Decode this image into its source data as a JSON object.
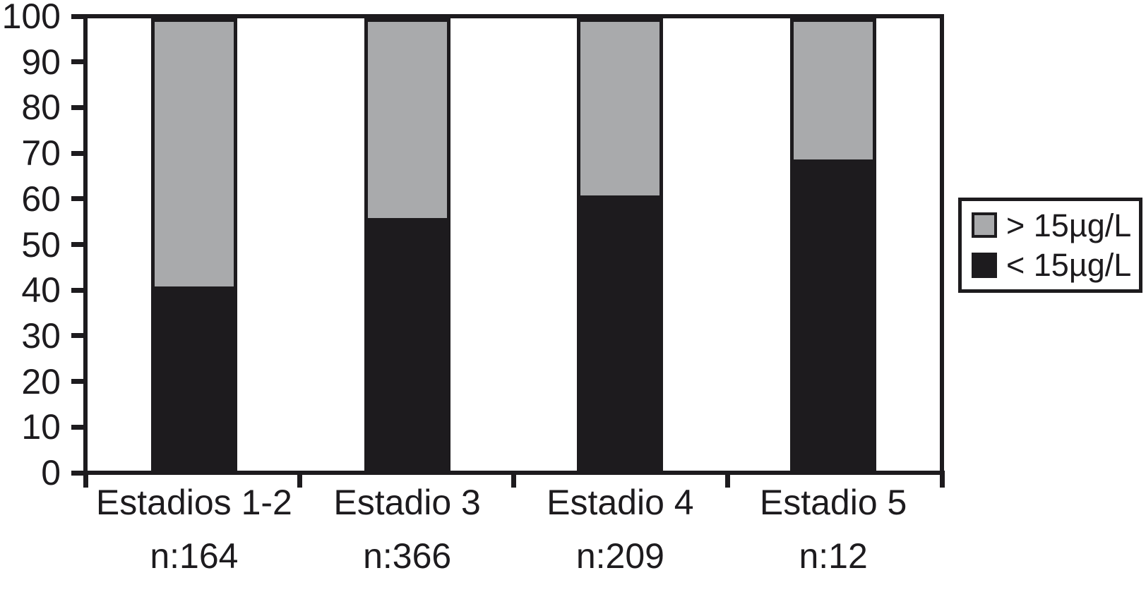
{
  "chart_data": {
    "type": "bar",
    "stacked": true,
    "title": "",
    "xlabel": "",
    "ylabel": "",
    "categories": [
      "Estadios 1-2",
      "Estadio 3",
      "Estadio 4",
      "Estadio 5"
    ],
    "n_labels": [
      "n:164",
      "n:366",
      "n:209",
      "n:12"
    ],
    "series": [
      {
        "name": "< 15µg/L",
        "color": "#1d1b1e",
        "values": [
          40,
          55,
          60,
          68
        ]
      },
      {
        "name": "> 15µg/L",
        "color": "#a9aaac",
        "values": [
          60,
          45,
          40,
          32
        ]
      }
    ],
    "ylim": [
      0,
      100
    ],
    "yticks": [
      0,
      10,
      20,
      30,
      40,
      50,
      60,
      70,
      80,
      90,
      100
    ],
    "grid": false,
    "legend_position": "right",
    "legend": [
      {
        "label": "> 15µg/L",
        "swatch_color": "#a9aaac",
        "swatch_border": "#1d1b1e",
        "icon": "gray-square-icon"
      },
      {
        "label": "< 15µg/L",
        "swatch_color": "#1d1b1e",
        "swatch_border": "#1d1b1e",
        "icon": "black-square-icon"
      }
    ]
  },
  "colors": {
    "axis": "#1d1b1e",
    "text": "#1d1b1e",
    "background": "#ffffff",
    "bar_gray": "#a9aaac",
    "bar_black": "#1d1b1e"
  }
}
